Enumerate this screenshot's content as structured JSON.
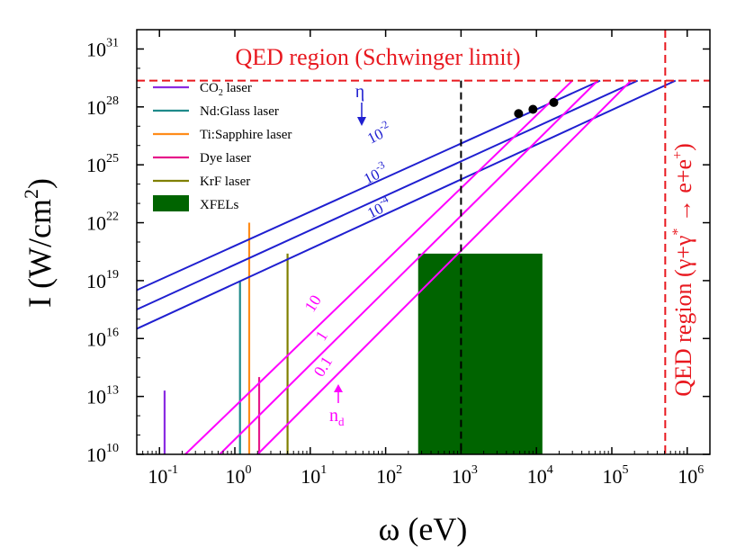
{
  "chart_data": {
    "type": "line",
    "x_scale": "log",
    "y_scale": "log",
    "xlim": [
      0.05,
      2000000
    ],
    "ylim": [
      10000000000.0,
      1e+32
    ],
    "xlabel": "ω (eV)",
    "ylabel": "I (W/cm²)",
    "x_ticks": [
      {
        "base": "10",
        "exp": "-1",
        "value": 0.1
      },
      {
        "base": "10",
        "exp": "0",
        "value": 1
      },
      {
        "base": "10",
        "exp": "1",
        "value": 10
      },
      {
        "base": "10",
        "exp": "2",
        "value": 100
      },
      {
        "base": "10",
        "exp": "3",
        "value": 1000
      },
      {
        "base": "10",
        "exp": "4",
        "value": 10000
      },
      {
        "base": "10",
        "exp": "5",
        "value": 100000
      },
      {
        "base": "10",
        "exp": "6",
        "value": 1000000
      }
    ],
    "y_ticks": [
      {
        "base": "10",
        "exp": "10",
        "value": 10000000000.0
      },
      {
        "base": "10",
        "exp": "13",
        "value": 10000000000000.0
      },
      {
        "base": "10",
        "exp": "16",
        "value": 1e+16
      },
      {
        "base": "10",
        "exp": "19",
        "value": 1e+19
      },
      {
        "base": "10",
        "exp": "22",
        "value": 1e+22
      },
      {
        "base": "10",
        "exp": "25",
        "value": 1e+25
      },
      {
        "base": "10",
        "exp": "28",
        "value": 1e+28
      },
      {
        "base": "10",
        "exp": "31",
        "value": 1e+31
      }
    ],
    "schwinger_limit": 2.3e+29,
    "qed_photon_threshold_eV": 511000,
    "vertical_dashed_line_eV": 1000,
    "eta_lines": [
      {
        "label_base": "10",
        "label_exp": "-2",
        "x": [
          0.05,
          70000.0
        ],
        "y": [
          3.2e+18,
          2.3e+29
        ]
      },
      {
        "label_base": "10",
        "label_exp": "-3",
        "x": [
          0.05,
          220000.0
        ],
        "y": [
          3.2e+17,
          2.3e+29
        ]
      },
      {
        "label_base": "10",
        "label_exp": "-4",
        "x": [
          0.05,
          700000.0
        ],
        "y": [
          3.2e+16,
          2.3e+29
        ]
      }
    ],
    "nd_lines": [
      {
        "label": "10",
        "x": [
          0.22,
          30000.0
        ],
        "y": [
          10000000000.0,
          2.3e+29
        ]
      },
      {
        "label": "1",
        "x": [
          0.63,
          65000.0
        ],
        "y": [
          10000000000.0,
          2.3e+29
        ]
      },
      {
        "label": "0.1",
        "x": [
          2.0,
          180000.0
        ],
        "y": [
          10000000000.0,
          2.3e+29
        ]
      }
    ],
    "markers": [
      {
        "x": 5800,
        "y": 4.5e+27
      },
      {
        "x": 9000,
        "y": 7.5e+27
      },
      {
        "x": 17000,
        "y": 1.7e+28
      }
    ],
    "lasers": [
      {
        "name": "CO2 laser",
        "x": 0.117,
        "y_top": 20000000000000.0,
        "color": "#8a2be2"
      },
      {
        "name": "Nd:Glass laser",
        "x": 1.17,
        "y_top": 1e+19,
        "color": "#1f8a8a"
      },
      {
        "name": "Ti:Sapphire laser",
        "x": 1.55,
        "y_top": 1e+22,
        "color": "#ff8c1a"
      },
      {
        "name": "Dye laser",
        "x": 2.1,
        "y_top": 100000000000000.0,
        "color": "#e6198a"
      },
      {
        "name": "KrF laser",
        "x": 5.0,
        "y_top": 2.5e+20,
        "color": "#808000"
      }
    ],
    "xfel_band": {
      "x": [
        270,
        12000
      ],
      "y": [
        10000000000.0,
        2.5e+20
      ],
      "color": "#006400"
    },
    "legend": [
      {
        "label": "CO",
        "sub": "2",
        "rest": " laser",
        "color": "#8a2be2",
        "kind": "line"
      },
      {
        "label": "Nd:Glass laser",
        "color": "#1f8a8a",
        "kind": "line"
      },
      {
        "label": "Ti:Sapphire laser",
        "color": "#ff8c1a",
        "kind": "line"
      },
      {
        "label": "Dye laser",
        "color": "#e6198a",
        "kind": "line"
      },
      {
        "label": "KrF laser",
        "color": "#808000",
        "kind": "line"
      },
      {
        "label": "XFELs",
        "color": "#006400",
        "kind": "box"
      }
    ],
    "annotations": {
      "qed_top": "QED region (Schwinger  limit)",
      "qed_right": "QED region (γ+γ* → e+e+)",
      "eta_symbol": "η",
      "nd_symbol": "n",
      "nd_sub": "d"
    },
    "colors": {
      "eta": "#1f1fd0",
      "nd": "#ff00ff",
      "qed": "#e8181f",
      "marker": "#000000"
    }
  }
}
